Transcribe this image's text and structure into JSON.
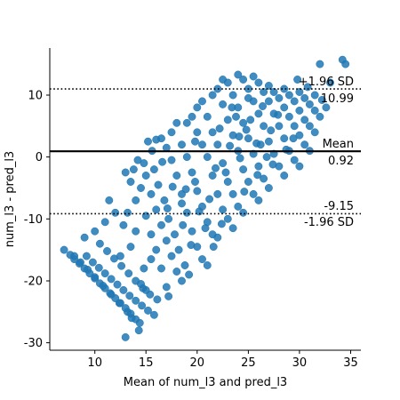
{
  "chart_data": {
    "type": "scatter",
    "title": "",
    "xlabel": "Mean of num_l3 and pred_l3",
    "ylabel": "num_l3 - pred_l3",
    "xlim": [
      5.6,
      36.0
    ],
    "ylim": [
      -31.2,
      17.6
    ],
    "x_ticks": [
      10,
      15,
      20,
      25,
      30,
      35
    ],
    "y_ticks": [
      -30,
      -20,
      -10,
      0,
      10
    ],
    "grid": false,
    "legend": "none",
    "reference_lines": {
      "upper_loa": {
        "value": 10.99,
        "label_top": "+1.96 SD",
        "label_bottom": "10.99",
        "style": "dotted"
      },
      "mean": {
        "value": 0.92,
        "label_top": "Mean",
        "label_bottom": "0.92",
        "style": "solid"
      },
      "lower_loa": {
        "value": -9.15,
        "label_top": "-9.15",
        "label_bottom": "-1.96 SD",
        "style": "dotted"
      }
    },
    "point_color": "#1f77b4",
    "points": [
      [
        7.0,
        -15.0
      ],
      [
        7.6,
        -15.8
      ],
      [
        8.0,
        -16.5
      ],
      [
        8.5,
        -17.2
      ],
      [
        9.0,
        -18.0
      ],
      [
        9.5,
        -18.8
      ],
      [
        10.0,
        -19.6
      ],
      [
        10.5,
        -20.4
      ],
      [
        11.0,
        -21.2
      ],
      [
        11.5,
        -22.0
      ],
      [
        12.0,
        -22.8
      ],
      [
        12.5,
        -23.6
      ],
      [
        13.0,
        -24.4
      ],
      [
        13.5,
        -25.3
      ],
      [
        14.0,
        -26.2
      ],
      [
        14.4,
        -26.8
      ],
      [
        9.2,
        -16.0
      ],
      [
        9.8,
        -17.0
      ],
      [
        10.4,
        -17.9
      ],
      [
        11.0,
        -18.8
      ],
      [
        11.6,
        -19.7
      ],
      [
        12.2,
        -20.6
      ],
      [
        12.8,
        -21.5
      ],
      [
        13.4,
        -22.4
      ],
      [
        14.0,
        -23.2
      ],
      [
        14.6,
        -24.0
      ],
      [
        15.2,
        -24.8
      ],
      [
        15.8,
        -25.5
      ],
      [
        10.5,
        -14.0
      ],
      [
        11.2,
        -15.2
      ],
      [
        11.9,
        -16.4
      ],
      [
        12.6,
        -17.6
      ],
      [
        13.3,
        -18.8
      ],
      [
        14.0,
        -20.0
      ],
      [
        14.7,
        -21.2
      ],
      [
        15.4,
        -22.2
      ],
      [
        16.1,
        -23.0
      ],
      [
        8.0,
        -16.0
      ],
      [
        8.6,
        -17.0
      ],
      [
        9.3,
        -18.2
      ],
      [
        10.0,
        -19.4
      ],
      [
        10.8,
        -20.8
      ],
      [
        11.6,
        -22.2
      ],
      [
        12.4,
        -23.6
      ],
      [
        13.2,
        -25.0
      ],
      [
        13.6,
        -26.0
      ],
      [
        14.3,
        -28.0
      ],
      [
        13.0,
        -29.1
      ],
      [
        9.0,
        -13.0
      ],
      [
        10.0,
        -12.0
      ],
      [
        11.0,
        -10.5
      ],
      [
        11.4,
        -7.0
      ],
      [
        12.0,
        -9.0
      ],
      [
        12.8,
        -11.0
      ],
      [
        12.5,
        -16.0
      ],
      [
        13.5,
        -14.5
      ],
      [
        14.0,
        -12.0
      ],
      [
        13.2,
        -9.0
      ],
      [
        13.0,
        -2.5
      ],
      [
        13.5,
        -4.0
      ],
      [
        14.5,
        -5.0
      ],
      [
        14.0,
        -7.0
      ],
      [
        15.0,
        -9.5
      ],
      [
        15.5,
        -12.5
      ],
      [
        16.0,
        -15.0
      ],
      [
        16.5,
        -18.0
      ],
      [
        17.0,
        -21.0
      ],
      [
        17.2,
        -22.5
      ],
      [
        15.5,
        -16.5
      ],
      [
        14.8,
        -18.0
      ],
      [
        14.5,
        -20.5
      ],
      [
        15.0,
        -21.5
      ],
      [
        13.8,
        -2.0
      ],
      [
        14.2,
        -0.5
      ],
      [
        15.0,
        -3.0
      ],
      [
        15.5,
        -6.0
      ],
      [
        16.0,
        -8.5
      ],
      [
        16.5,
        -11.0
      ],
      [
        17.0,
        -13.5
      ],
      [
        17.5,
        -16.0
      ],
      [
        18.0,
        -18.5
      ],
      [
        18.5,
        -20.0
      ],
      [
        14.8,
        -1.0
      ],
      [
        15.2,
        2.5
      ],
      [
        15.6,
        1.0
      ],
      [
        15.8,
        -2.0
      ],
      [
        16.2,
        -4.5
      ],
      [
        16.8,
        -7.0
      ],
      [
        17.2,
        -10.0
      ],
      [
        17.8,
        -12.5
      ],
      [
        18.2,
        -15.0
      ],
      [
        18.8,
        -17.5
      ],
      [
        19.2,
        -19.0
      ],
      [
        16.0,
        2.8
      ],
      [
        16.5,
        3.0
      ],
      [
        17.0,
        1.5
      ],
      [
        17.5,
        -0.5
      ],
      [
        18.0,
        -3.0
      ],
      [
        18.5,
        -6.0
      ],
      [
        19.0,
        -9.0
      ],
      [
        19.5,
        -12.0
      ],
      [
        20.0,
        -14.5
      ],
      [
        20.5,
        -16.5
      ],
      [
        21.0,
        -17.5
      ],
      [
        17.5,
        4.0
      ],
      [
        18.0,
        5.5
      ],
      [
        18.5,
        2.0
      ],
      [
        19.0,
        0.0
      ],
      [
        19.5,
        -2.5
      ],
      [
        20.0,
        -5.5
      ],
      [
        20.5,
        -8.0
      ],
      [
        21.0,
        -10.5
      ],
      [
        21.5,
        -12.5
      ],
      [
        22.0,
        -13.0
      ],
      [
        19.0,
        5.5
      ],
      [
        19.5,
        6.5
      ],
      [
        20.0,
        4.0
      ],
      [
        20.5,
        2.0
      ],
      [
        21.0,
        0.0
      ],
      [
        21.5,
        -3.0
      ],
      [
        22.0,
        -6.0
      ],
      [
        22.5,
        -8.5
      ],
      [
        23.0,
        -10.0
      ],
      [
        23.5,
        -11.5
      ],
      [
        20.0,
        8.0
      ],
      [
        20.5,
        9.0
      ],
      [
        21.0,
        6.5
      ],
      [
        21.5,
        4.0
      ],
      [
        22.0,
        2.0
      ],
      [
        22.5,
        -1.0
      ],
      [
        23.0,
        -4.0
      ],
      [
        23.5,
        -6.0
      ],
      [
        24.0,
        -8.0
      ],
      [
        24.5,
        -9.0
      ],
      [
        21.5,
        10.0
      ],
      [
        22.0,
        11.0
      ],
      [
        22.5,
        8.5
      ],
      [
        23.0,
        6.0
      ],
      [
        23.5,
        3.5
      ],
      [
        24.0,
        1.0
      ],
      [
        24.5,
        -2.0
      ],
      [
        25.0,
        -4.0
      ],
      [
        25.5,
        -6.0
      ],
      [
        26.0,
        -7.0
      ],
      [
        22.5,
        12.5
      ],
      [
        23.0,
        12.0
      ],
      [
        23.5,
        10.0
      ],
      [
        24.0,
        8.0
      ],
      [
        24.5,
        5.5
      ],
      [
        25.0,
        3.0
      ],
      [
        25.5,
        0.5
      ],
      [
        26.0,
        -1.5
      ],
      [
        26.5,
        -3.5
      ],
      [
        27.0,
        -5.0
      ],
      [
        24.0,
        13.3
      ],
      [
        24.5,
        12.5
      ],
      [
        25.0,
        11.0
      ],
      [
        25.5,
        9.0
      ],
      [
        26.0,
        7.0
      ],
      [
        26.5,
        5.0
      ],
      [
        27.0,
        2.5
      ],
      [
        27.5,
        0.5
      ],
      [
        28.0,
        -1.5
      ],
      [
        28.5,
        -3.0
      ],
      [
        25.5,
        13.0
      ],
      [
        26.0,
        12.0
      ],
      [
        26.5,
        10.5
      ],
      [
        27.0,
        9.0
      ],
      [
        27.5,
        7.0
      ],
      [
        28.0,
        5.0
      ],
      [
        28.5,
        3.0
      ],
      [
        29.0,
        1.0
      ],
      [
        29.5,
        -0.5
      ],
      [
        30.0,
        -1.5
      ],
      [
        27.0,
        11.5
      ],
      [
        27.5,
        10.5
      ],
      [
        28.0,
        9.5
      ],
      [
        28.5,
        8.0
      ],
      [
        29.0,
        6.5
      ],
      [
        29.5,
        5.0
      ],
      [
        30.0,
        3.5
      ],
      [
        30.5,
        2.0
      ],
      [
        31.0,
        1.0
      ],
      [
        28.5,
        11.0
      ],
      [
        29.0,
        10.0
      ],
      [
        29.5,
        9.0
      ],
      [
        30.0,
        7.5
      ],
      [
        30.5,
        6.0
      ],
      [
        31.0,
        5.0
      ],
      [
        31.5,
        4.0
      ],
      [
        30.0,
        10.5
      ],
      [
        30.5,
        9.5
      ],
      [
        31.0,
        8.5
      ],
      [
        31.5,
        7.5
      ],
      [
        32.0,
        6.5
      ],
      [
        31.5,
        10.0
      ],
      [
        32.2,
        9.2
      ],
      [
        32.6,
        8.0
      ],
      [
        29.8,
        12.5
      ],
      [
        30.8,
        11.3
      ],
      [
        32.0,
        15.0
      ],
      [
        34.2,
        15.7
      ],
      [
        34.5,
        15.0
      ],
      [
        33.0,
        12.0
      ],
      [
        18.5,
        -7.5
      ],
      [
        19.8,
        -4.0
      ],
      [
        21.2,
        -6.8
      ],
      [
        22.8,
        -2.5
      ],
      [
        24.2,
        -0.2
      ],
      [
        25.8,
        2.2
      ],
      [
        27.2,
        4.3
      ],
      [
        23.2,
        1.8
      ],
      [
        24.8,
        4.4
      ],
      [
        26.2,
        2.0
      ],
      [
        19.8,
        2.5
      ],
      [
        21.8,
        -1.8
      ],
      [
        22.2,
        4.6
      ],
      [
        23.8,
        6.5
      ],
      [
        25.2,
        6.0
      ],
      [
        26.8,
        0.0
      ],
      [
        20.8,
        -11.5
      ],
      [
        22.4,
        -10.8
      ],
      [
        19.4,
        -14.2
      ],
      [
        18.6,
        -11.0
      ],
      [
        20.2,
        -8.8
      ],
      [
        21.6,
        -14.5
      ],
      [
        18.9,
        -5.2
      ],
      [
        17.6,
        -4.8
      ],
      [
        16.6,
        -0.8
      ],
      [
        17.1,
        -8.3
      ],
      [
        24.6,
        -5.6
      ],
      [
        25.9,
        -2.9
      ],
      [
        27.4,
        -1.2
      ],
      [
        28.7,
        1.2
      ],
      [
        29.4,
        3.0
      ],
      [
        27.9,
        6.8
      ],
      [
        26.4,
        8.2
      ],
      [
        25.0,
        9.5
      ],
      [
        23.4,
        8.0
      ],
      [
        24.1,
        3.3
      ]
    ]
  }
}
